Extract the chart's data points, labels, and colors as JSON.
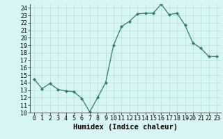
{
  "x": [
    0,
    1,
    2,
    3,
    4,
    5,
    6,
    7,
    8,
    9,
    10,
    11,
    12,
    13,
    14,
    15,
    16,
    17,
    18,
    19,
    20,
    21,
    22,
    23
  ],
  "y": [
    14.5,
    13.2,
    13.9,
    13.1,
    12.9,
    12.8,
    11.9,
    10.1,
    12.0,
    14.0,
    19.0,
    21.5,
    22.2,
    23.2,
    23.3,
    23.3,
    24.5,
    23.1,
    23.3,
    21.7,
    19.3,
    18.6,
    17.5,
    17.5
  ],
  "xlabel": "Humidex (Indice chaleur)",
  "ylim": [
    10,
    24.5
  ],
  "xlim": [
    -0.5,
    23.5
  ],
  "yticks": [
    10,
    11,
    12,
    13,
    14,
    15,
    16,
    17,
    18,
    19,
    20,
    21,
    22,
    23,
    24
  ],
  "xticks": [
    0,
    1,
    2,
    3,
    4,
    5,
    6,
    7,
    8,
    9,
    10,
    11,
    12,
    13,
    14,
    15,
    16,
    17,
    18,
    19,
    20,
    21,
    22,
    23
  ],
  "line_color": "#2d7d6e",
  "marker": "D",
  "marker_size": 2.0,
  "bg_color": "#d8f5f5",
  "grid_color": "#b8dada",
  "xlabel_fontsize": 7.5,
  "tick_fontsize": 6.0,
  "lw": 0.9
}
